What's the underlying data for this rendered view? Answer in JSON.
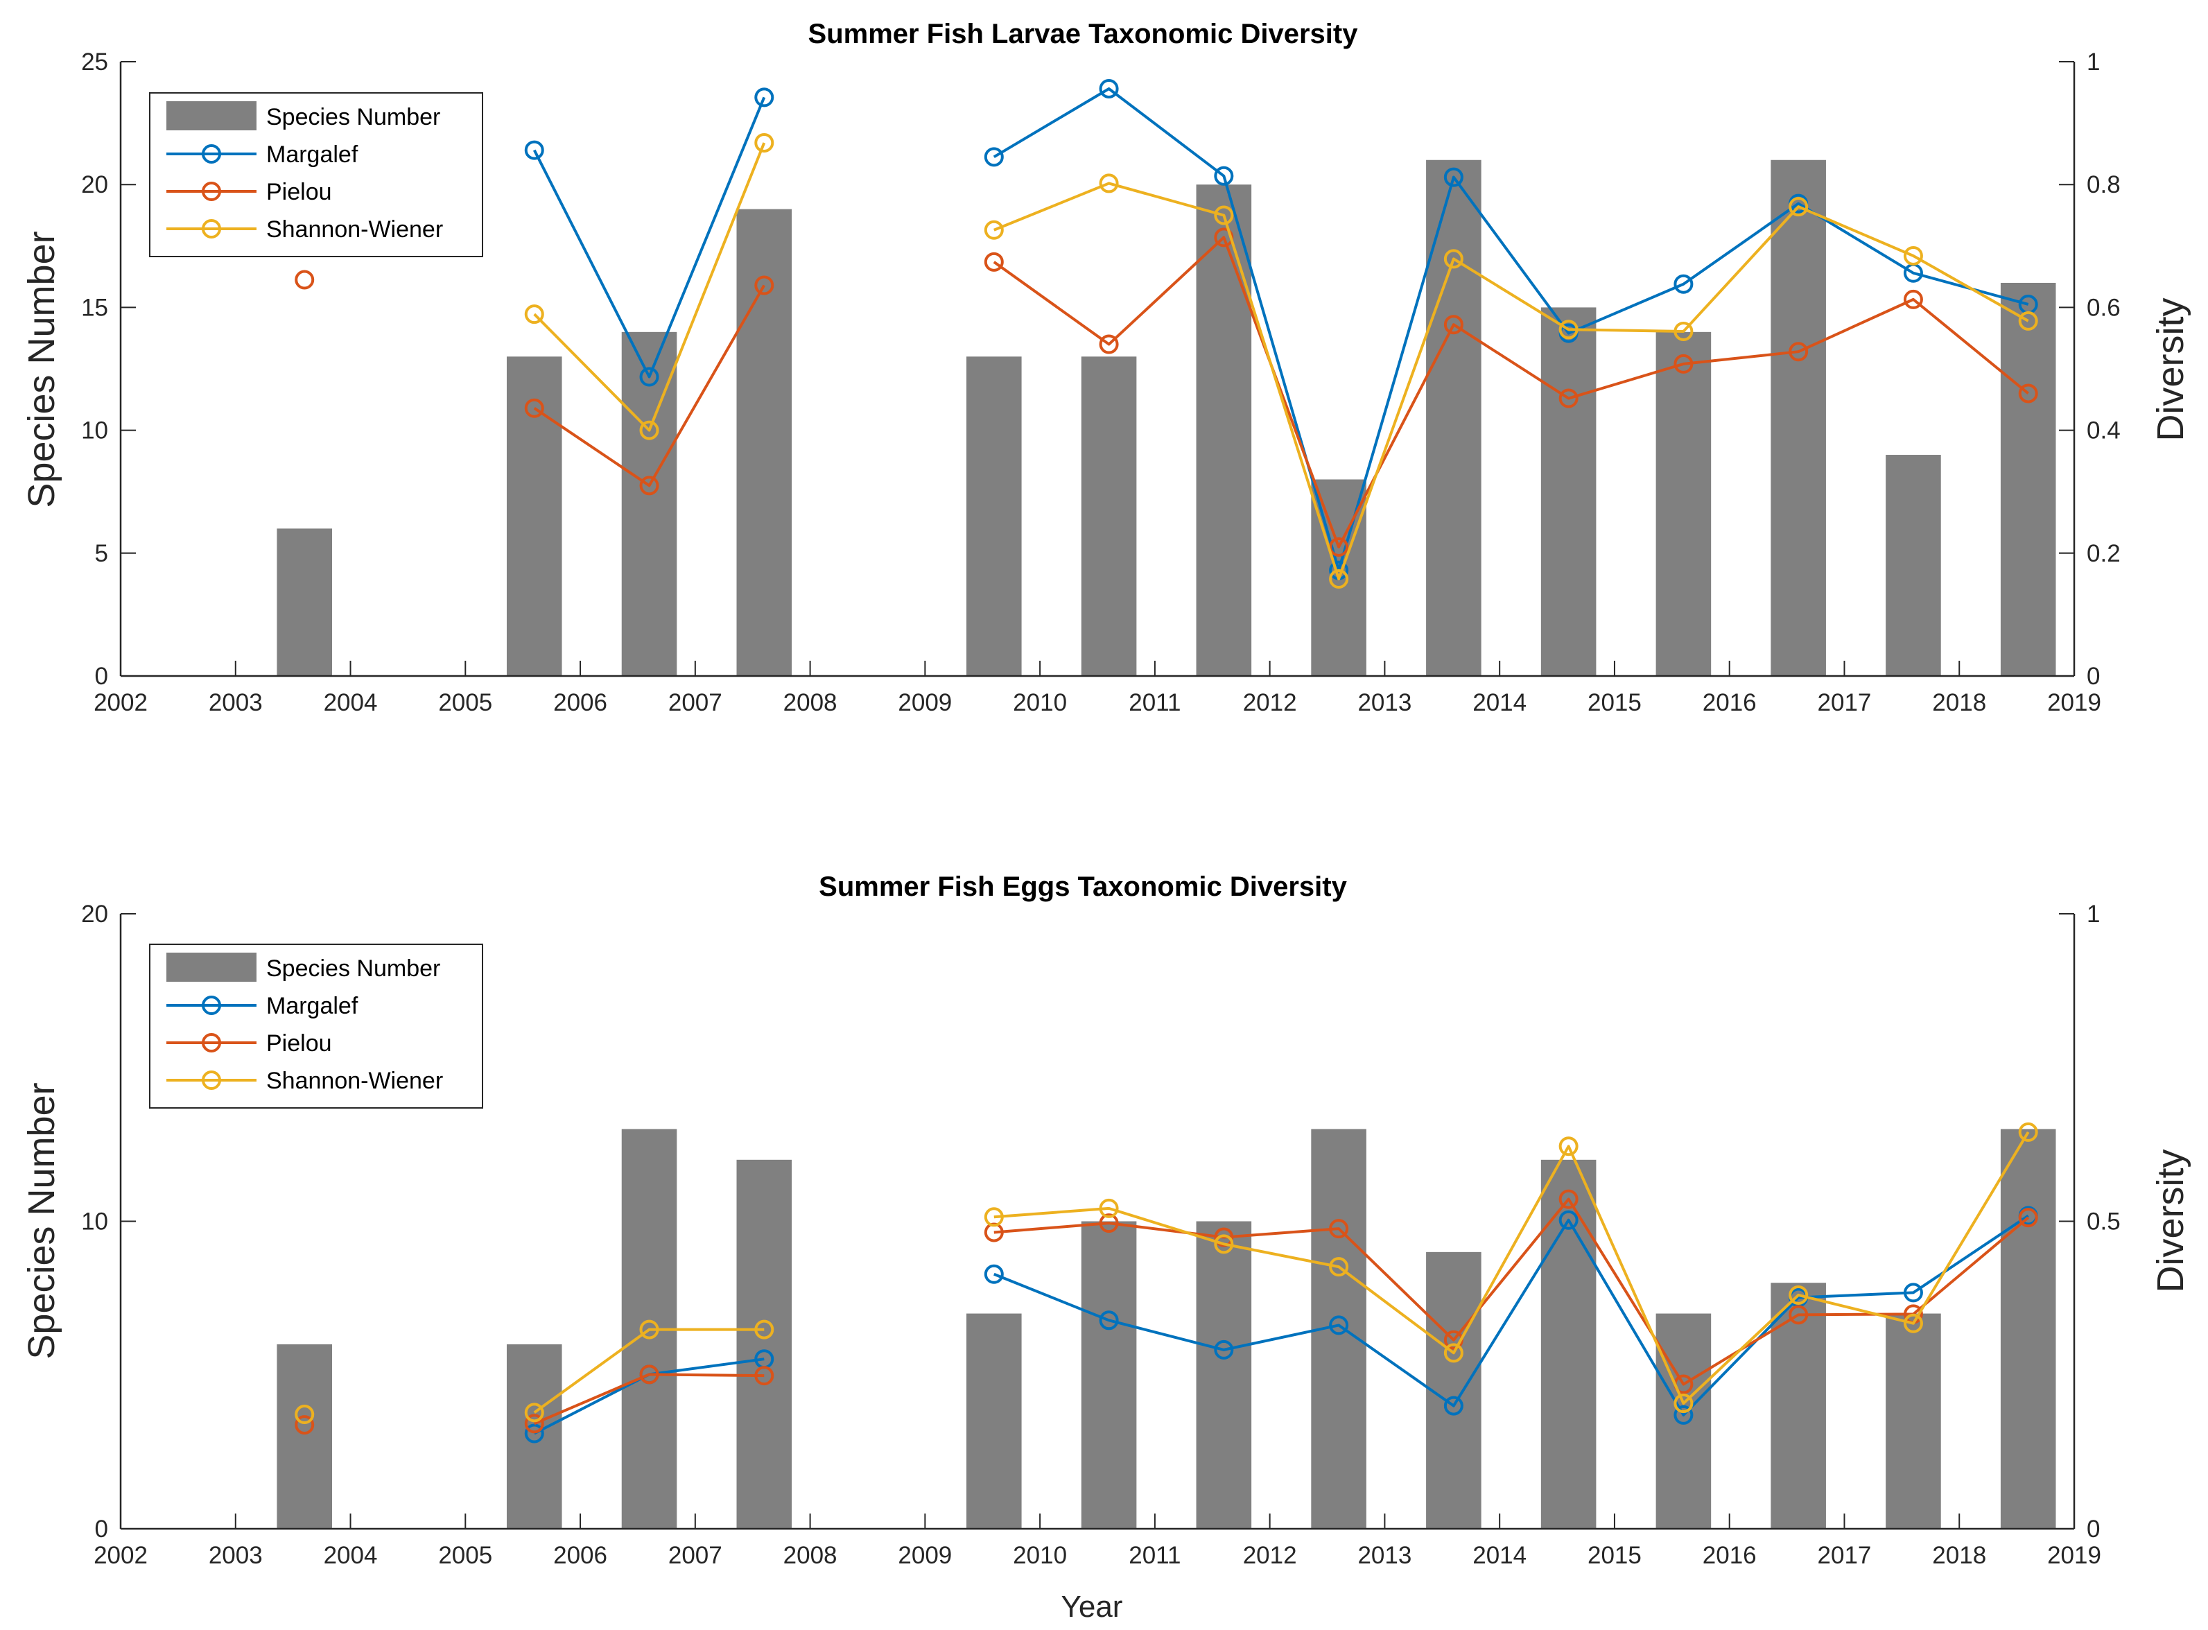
{
  "chart_data": [
    {
      "type": "bar+line",
      "title": "Summer Fish Larvae Taxonomic Diversity",
      "xlabel": "",
      "ylabel_left": "Species Number",
      "ylabel_right": "Diversity",
      "xlim": [
        2002,
        2019
      ],
      "ylim_left": [
        0,
        25
      ],
      "ylim_right": [
        0,
        1
      ],
      "xticks": [
        "2002",
        "2003",
        "2004",
        "2005",
        "2006",
        "2007",
        "2008",
        "2009",
        "2010",
        "2011",
        "2012",
        "2013",
        "2014",
        "2015",
        "2016",
        "2017",
        "2018",
        "2019"
      ],
      "yticks_left": [
        "0",
        "5",
        "10",
        "15",
        "20",
        "25"
      ],
      "yticks_right": [
        "0",
        "0.2",
        "0.4",
        "0.6",
        "0.8",
        "1"
      ],
      "legend_position": "top-left",
      "bars": {
        "name": "Species Number",
        "color": "#808080",
        "x": [
          2002.6,
          2003.6,
          2004.6,
          2005.6,
          2006.6,
          2007.6,
          2008.6,
          2009.6,
          2010.6,
          2011.6,
          2012.6,
          2013.6,
          2014.6,
          2015.6,
          2016.6,
          2017.6,
          2018.6
        ],
        "values": [
          0,
          6,
          0,
          13,
          14,
          19,
          0,
          13,
          13,
          20,
          8,
          21,
          15,
          14,
          21,
          9,
          16
        ]
      },
      "series": [
        {
          "name": "Margalef",
          "color": "#0072BD",
          "x": [
            2002.6,
            2003.6,
            2004.6,
            2005.6,
            2006.6,
            2007.6,
            2008.6,
            2009.6,
            2010.6,
            2011.6,
            2012.6,
            2013.6,
            2014.6,
            2015.6,
            2016.6,
            2017.6,
            2018.6
          ],
          "values": [
            null,
            null,
            null,
            0.856,
            0.487,
            0.942,
            null,
            0.845,
            0.956,
            0.814,
            0.172,
            0.812,
            0.558,
            0.638,
            0.769,
            0.656,
            0.605
          ]
        },
        {
          "name": "Pielou",
          "color": "#D95319",
          "x": [
            2002.6,
            2003.6,
            2004.6,
            2005.6,
            2006.6,
            2007.6,
            2008.6,
            2009.6,
            2010.6,
            2011.6,
            2012.6,
            2013.6,
            2014.6,
            2015.6,
            2016.6,
            2017.6,
            2018.6
          ],
          "values": [
            null,
            0.645,
            null,
            0.436,
            0.31,
            0.636,
            null,
            0.674,
            0.54,
            0.714,
            0.21,
            0.572,
            0.452,
            0.508,
            0.528,
            0.613,
            0.46
          ]
        },
        {
          "name": "Shannon-Wiener",
          "color": "#EDB120",
          "x": [
            2002.6,
            2003.6,
            2004.6,
            2005.6,
            2006.6,
            2007.6,
            2008.6,
            2009.6,
            2010.6,
            2011.6,
            2012.6,
            2013.6,
            2014.6,
            2015.6,
            2016.6,
            2017.6,
            2018.6
          ],
          "values": [
            null,
            null,
            null,
            0.589,
            0.4,
            0.868,
            null,
            0.726,
            0.802,
            0.75,
            0.158,
            0.679,
            0.564,
            0.561,
            0.764,
            0.684,
            0.578
          ]
        }
      ]
    },
    {
      "type": "bar+line",
      "title": "Summer Fish Eggs Taxonomic Diversity",
      "xlabel": "Year",
      "ylabel_left": "Species Number",
      "ylabel_right": "Diversity",
      "xlim": [
        2002,
        2019
      ],
      "ylim_left": [
        0,
        20
      ],
      "ylim_right": [
        0,
        1
      ],
      "xticks": [
        "2002",
        "2003",
        "2004",
        "2005",
        "2006",
        "2007",
        "2008",
        "2009",
        "2010",
        "2011",
        "2012",
        "2013",
        "2014",
        "2015",
        "2016",
        "2017",
        "2018",
        "2019"
      ],
      "yticks_left": [
        "0",
        "10",
        "20"
      ],
      "yticks_right": [
        "0",
        "0.5",
        "1"
      ],
      "legend_position": "top-left",
      "bars": {
        "name": "Species Number",
        "color": "#808080",
        "x": [
          2002.6,
          2003.6,
          2004.6,
          2005.6,
          2006.6,
          2007.6,
          2008.6,
          2009.6,
          2010.6,
          2011.6,
          2012.6,
          2013.6,
          2014.6,
          2015.6,
          2016.6,
          2017.6,
          2018.6
        ],
        "values": [
          0,
          6,
          0,
          6,
          13,
          12,
          0,
          7,
          10,
          10,
          13,
          9,
          12,
          7,
          8,
          7,
          13
        ]
      },
      "series": [
        {
          "name": "Margalef",
          "color": "#0072BD",
          "x": [
            2002.6,
            2003.6,
            2004.6,
            2005.6,
            2006.6,
            2007.6,
            2008.6,
            2009.6,
            2010.6,
            2011.6,
            2012.6,
            2013.6,
            2014.6,
            2015.6,
            2016.6,
            2017.6,
            2018.6
          ],
          "values": [
            null,
            null,
            null,
            0.155,
            0.251,
            0.276,
            null,
            0.414,
            0.339,
            0.291,
            0.331,
            0.2,
            0.502,
            0.185,
            0.376,
            0.384,
            0.509
          ]
        },
        {
          "name": "Pielou",
          "color": "#D95319",
          "x": [
            2002.6,
            2003.6,
            2004.6,
            2005.6,
            2006.6,
            2007.6,
            2008.6,
            2009.6,
            2010.6,
            2011.6,
            2012.6,
            2013.6,
            2014.6,
            2015.6,
            2016.6,
            2017.6,
            2018.6
          ],
          "values": [
            null,
            0.169,
            null,
            0.171,
            0.251,
            0.249,
            null,
            0.482,
            0.497,
            0.474,
            0.488,
            0.307,
            0.536,
            0.235,
            0.348,
            0.349,
            0.506
          ]
        },
        {
          "name": "Shannon-Wiener",
          "color": "#EDB120",
          "x": [
            2002.6,
            2003.6,
            2004.6,
            2005.6,
            2006.6,
            2007.6,
            2008.6,
            2009.6,
            2010.6,
            2011.6,
            2012.6,
            2013.6,
            2014.6,
            2015.6,
            2016.6,
            2017.6,
            2018.6
          ],
          "values": [
            null,
            0.186,
            null,
            0.189,
            0.324,
            0.324,
            null,
            0.507,
            0.521,
            0.463,
            0.426,
            0.286,
            0.622,
            0.204,
            0.38,
            0.334,
            0.645
          ]
        }
      ]
    }
  ]
}
